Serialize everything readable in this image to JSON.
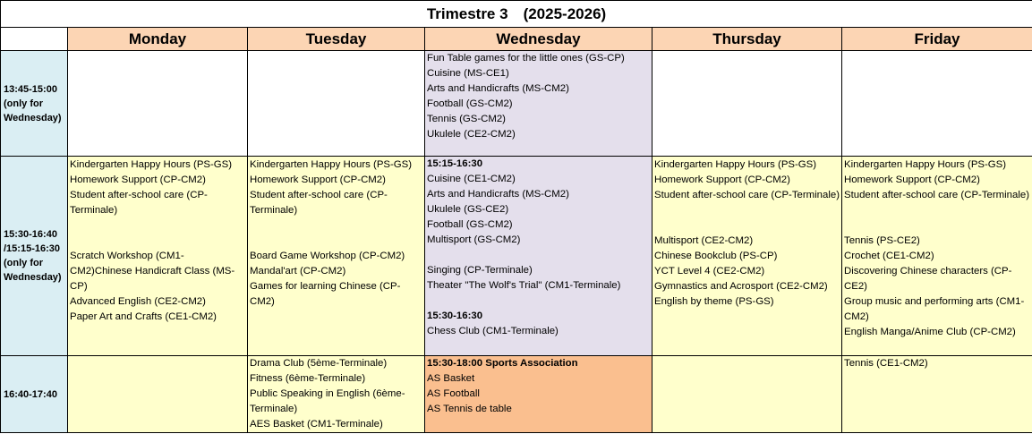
{
  "title": "Trimestre 3　(2025-2026)",
  "days": [
    "Monday",
    "Tuesday",
    "Wednesday",
    "Thursday",
    "Friday"
  ],
  "colors": {
    "header": "#fcd5b4",
    "time": "#daeef3",
    "yellow": "#ffffcc",
    "lavender": "#e4dfec",
    "orange": "#fabf8f"
  },
  "rows": [
    {
      "time": "13:45-15:00\n(only for\nWednesday)",
      "cells": [
        {
          "bg": "w",
          "groups": []
        },
        {
          "bg": "w",
          "groups": []
        },
        {
          "bg": "lav",
          "groups": [
            {
              "items": [
                "Fun Table games for the little ones (GS-CP)",
                "Cuisine  (MS-CE1)",
                "Arts and Handicrafts (MS-CM2)",
                "Football (GS-CM2)",
                "Tennis (GS-CM2)",
                "Ukulele (CE2-CM2)"
              ]
            }
          ]
        },
        {
          "bg": "w",
          "groups": []
        },
        {
          "bg": "w",
          "groups": []
        }
      ]
    },
    {
      "time": "15:30-16:40\n/15:15-16:30\n(only for\nWednesday)",
      "cells": [
        {
          "bg": "y",
          "groups": [
            {
              "items": [
                "Kindergarten Happy Hours (PS-GS)",
                "Homework Support (CP-CM2)",
                "Student after-school care (CP-Terminale)"
              ]
            },
            {
              "spacer": 2,
              "items": [
                "Scratch Workshop (CM1-CM2)Chinese Handicraft Class (MS-CP)",
                "Advanced English (CE2-CM2)",
                "Paper Art and Crafts (CE1-CM2)"
              ]
            }
          ]
        },
        {
          "bg": "y",
          "groups": [
            {
              "items": [
                "Kindergarten Happy Hours (PS-GS)",
                "Homework Support (CP-CM2)",
                "Student after-school care  (CP-Terminale)"
              ]
            },
            {
              "spacer": 2,
              "items": [
                "Board Game Workshop (CP-CM2)",
                "Mandal'art (CP-CM2)",
                "Games for learning Chinese (CP-CM2)"
              ]
            }
          ]
        },
        {
          "bg": "lav",
          "groups": [
            {
              "heading": "15:15-16:30",
              "items": [
                "Cuisine  (CE1-CM2)",
                "Arts and Handicrafts (MS-CM2)",
                "Ukulele (GS-CE2)",
                "Football (GS-CM2)",
                "Multisport (GS-CM2)"
              ]
            },
            {
              "spacer": 1,
              "items": [
                "Singing (CP-Terminale)",
                "Theater \"The Wolf's Trial\"  (CM1-Terminale)"
              ]
            },
            {
              "spacer": 1,
              "heading": "15:30-16:30",
              "items": [
                "Chess Club (CM1-Terminale)"
              ]
            }
          ]
        },
        {
          "bg": "y",
          "groups": [
            {
              "items": [
                "Kindergarten Happy Hours (PS-GS)",
                "Homework Support (CP-CM2)",
                "Student after-school care  (CP-Terminale)"
              ]
            },
            {
              "spacer": 2,
              "items": [
                "Multisport (CE2-CM2)",
                "Chinese Bookclub (PS-CP)",
                "YCT Level 4  (CE2-CM2)",
                "Gymnastics and Acrosport  (CE2-CM2)",
                "English by theme (PS-GS)"
              ]
            }
          ]
        },
        {
          "bg": "y",
          "groups": [
            {
              "items": [
                "Kindergarten Happy Hours (PS-GS)",
                "Homework Support (CP-CM2)",
                "Student after-school care  (CP-Terminale)"
              ]
            },
            {
              "spacer": 2,
              "items": [
                "Tennis (PS-CE2)",
                "Crochet (CE1-CM2)",
                "Discovering Chinese characters  (CP-CE2)",
                "Group music and performing arts (CM1-CM2)",
                "English Manga/Anime Club (CP-CM2)"
              ]
            }
          ]
        }
      ]
    },
    {
      "time": "16:40-17:40",
      "cells": [
        {
          "bg": "y",
          "groups": []
        },
        {
          "bg": "y",
          "groups": [
            {
              "items": [
                "Drama Club (5ème-Terminale)",
                "Fitness  (6ème-Terminale)",
                "Public Speaking in English  (6ème-Terminale)",
                "AES Basket  (CM1-Terminale)"
              ]
            }
          ]
        },
        {
          "bg": "org",
          "groups": [
            {
              "heading": "15:30-18:00 Sports Association",
              "items": [
                "AS Basket",
                "AS Football",
                "AS Tennis de table"
              ]
            }
          ]
        },
        {
          "bg": "y",
          "groups": []
        },
        {
          "bg": "y",
          "groups": [
            {
              "items": [
                "Tennis  (CE1-CM2)"
              ]
            }
          ]
        }
      ]
    }
  ]
}
